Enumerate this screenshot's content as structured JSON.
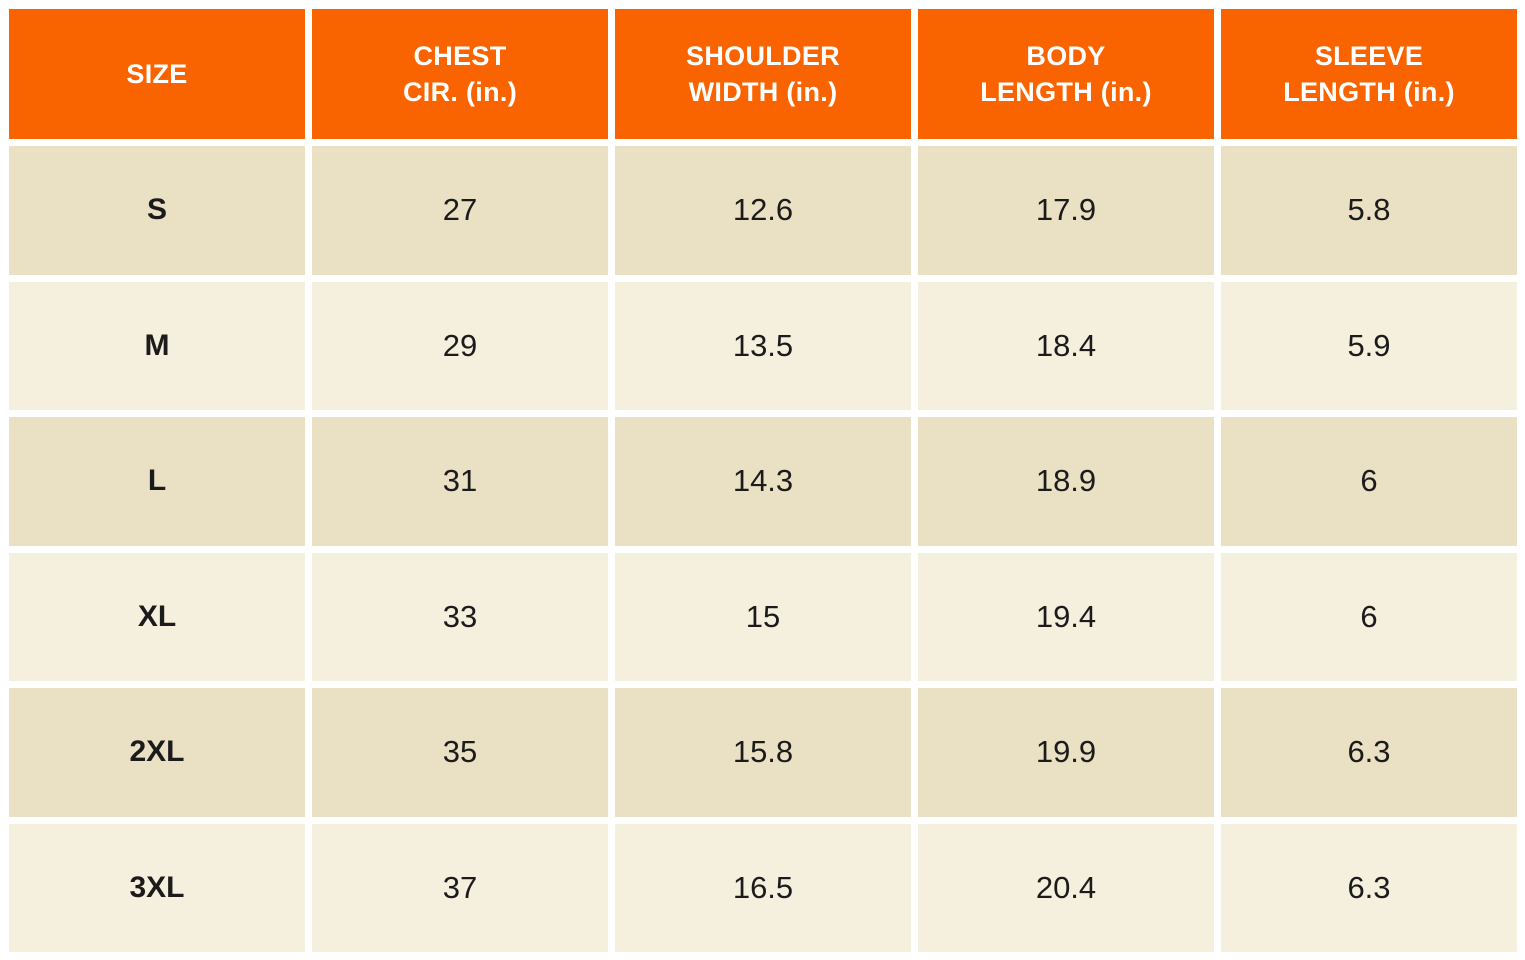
{
  "theme": {
    "header_bg": "#fa6400",
    "header_text": "#ffffff",
    "row_dark": "#eae0c3",
    "row_light": "#f5efde",
    "cell_text": "#1b1b1b",
    "page_bg": "#ffffff"
  },
  "chart_data": {
    "type": "table",
    "columns": [
      {
        "label": "SIZE",
        "line1": "SIZE",
        "line2": ""
      },
      {
        "label": "CHEST CIR. (in.)",
        "line1": "CHEST",
        "line2": "CIR. (in.)"
      },
      {
        "label": "SHOULDER WIDTH (in.)",
        "line1": "SHOULDER",
        "line2": "WIDTH (in.)"
      },
      {
        "label": "BODY LENGTH (in.)",
        "line1": "BODY",
        "line2": "LENGTH (in.)"
      },
      {
        "label": "SLEEVE LENGTH (in.)",
        "line1": "SLEEVE",
        "line2": "LENGTH (in.)"
      }
    ],
    "rows": [
      {
        "size": "S",
        "values": [
          "27",
          "12.6",
          "17.9",
          "5.8"
        ]
      },
      {
        "size": "M",
        "values": [
          "29",
          "13.5",
          "18.4",
          "5.9"
        ]
      },
      {
        "size": "L",
        "values": [
          "31",
          "14.3",
          "18.9",
          "6"
        ]
      },
      {
        "size": "XL",
        "values": [
          "33",
          "15",
          "19.4",
          "6"
        ]
      },
      {
        "size": "2XL",
        "values": [
          "35",
          "15.8",
          "19.9",
          "6.3"
        ]
      },
      {
        "size": "3XL",
        "values": [
          "37",
          "16.5",
          "20.4",
          "6.3"
        ]
      }
    ]
  }
}
